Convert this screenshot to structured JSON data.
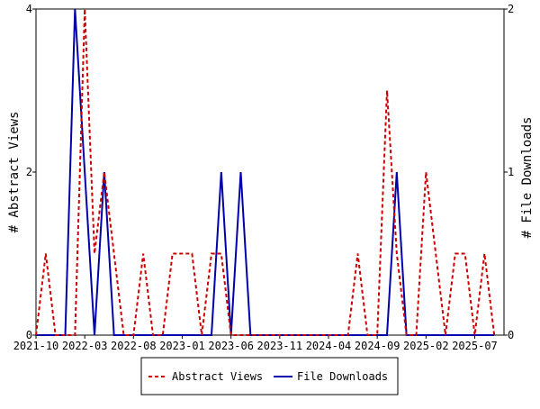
{
  "chart_data": {
    "type": "line",
    "title": "",
    "xlabel": "",
    "ylabel_left": "# Abstract Views",
    "ylabel_right": "# File Downloads",
    "y_left_range": [
      0,
      4
    ],
    "y_left_ticks": [
      "0",
      "2",
      "4"
    ],
    "y_right_range": [
      0,
      2
    ],
    "y_right_ticks": [
      "0",
      "1",
      "2"
    ],
    "x_tick_labels": [
      "2021-10",
      "2022-03",
      "2022-08",
      "2023-01",
      "2023-06",
      "2023-11",
      "2024-04",
      "2024-09",
      "2025-02",
      "2025-07"
    ],
    "x_month_count": 48,
    "legend_position": "bottom",
    "series": [
      {
        "name": "Abstract Views",
        "axis": "left",
        "color": "#cc0000",
        "dash": "dashed",
        "values": [
          0,
          1,
          0,
          0,
          0,
          4,
          1,
          2,
          1,
          0,
          0,
          1,
          0,
          0,
          1,
          1,
          1,
          0,
          1,
          1,
          0,
          0,
          0,
          0,
          0,
          0,
          0,
          0,
          0,
          0,
          0,
          0,
          0,
          1,
          0,
          0,
          3,
          1,
          0,
          0,
          2,
          1,
          0,
          1,
          1,
          0,
          1,
          0
        ]
      },
      {
        "name": "File Downloads",
        "axis": "right",
        "color": "#0000aa",
        "dash": "solid",
        "values": [
          0,
          0,
          0,
          0,
          2,
          1,
          0,
          1,
          0,
          0,
          0,
          0,
          0,
          0,
          0,
          0,
          0,
          0,
          0,
          1,
          0,
          1,
          0,
          0,
          0,
          0,
          0,
          0,
          0,
          0,
          0,
          0,
          0,
          0,
          0,
          0,
          0,
          1,
          0,
          0,
          0,
          0,
          0,
          0,
          0,
          0,
          0,
          0
        ]
      }
    ]
  }
}
